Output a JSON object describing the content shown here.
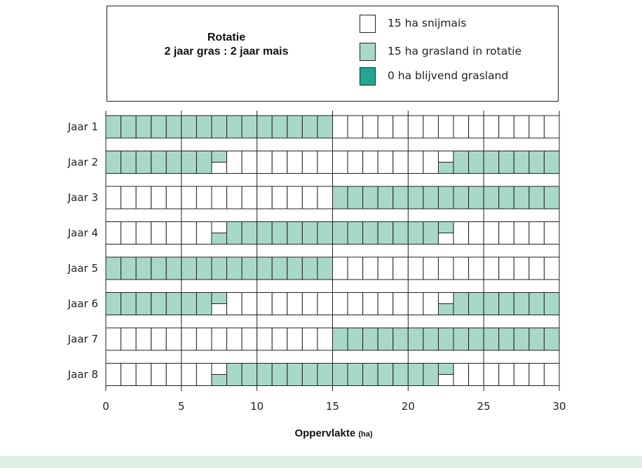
{
  "legend": {
    "title_line1": "Rotatie",
    "title_line2": "2 jaar gras : 2 jaar mais",
    "items": [
      {
        "label": "15 ha snijmais",
        "color": "#ffffff"
      },
      {
        "label": "15 ha grasland in rotatie",
        "color": "#a8d8c8"
      },
      {
        "label": "0 ha blijvend grasland",
        "color": "#23a68f"
      }
    ]
  },
  "colors": {
    "mais": "#ffffff",
    "gras": "#a8d8c8",
    "blijvend": "#23a68f",
    "background": "#ddeee5"
  },
  "chart_data": {
    "type": "bar",
    "orientation": "horizontal",
    "title": "Rotatie 2 jaar gras : 2 jaar mais",
    "xlabel": "Oppervlakte",
    "xlabel_unit": "(ha)",
    "xlim": [
      0,
      30
    ],
    "xticks": [
      0,
      5,
      10,
      15,
      20,
      25,
      30
    ],
    "grid": true,
    "rows": [
      {
        "label": "Jaar 1",
        "gras": [
          [
            0,
            15
          ]
        ],
        "split_gras_bottom": [],
        "split_gras_top": []
      },
      {
        "label": "Jaar 2",
        "gras": [
          [
            0,
            7
          ],
          [
            23,
            30
          ]
        ],
        "split_gras_bottom": [
          22
        ],
        "split_gras_top": [
          7
        ]
      },
      {
        "label": "Jaar 3",
        "gras": [
          [
            15,
            30
          ]
        ],
        "split_gras_bottom": [],
        "split_gras_top": []
      },
      {
        "label": "Jaar 4",
        "gras": [
          [
            8,
            22
          ]
        ],
        "split_gras_bottom": [
          7
        ],
        "split_gras_top": [
          22
        ]
      },
      {
        "label": "Jaar 5",
        "gras": [
          [
            0,
            15
          ]
        ],
        "split_gras_bottom": [],
        "split_gras_top": []
      },
      {
        "label": "Jaar 6",
        "gras": [
          [
            0,
            7
          ],
          [
            23,
            30
          ]
        ],
        "split_gras_bottom": [
          22
        ],
        "split_gras_top": [
          7
        ]
      },
      {
        "label": "Jaar 7",
        "gras": [
          [
            15,
            30
          ]
        ],
        "split_gras_bottom": [],
        "split_gras_top": []
      },
      {
        "label": "Jaar 8",
        "gras": [
          [
            8,
            22
          ]
        ],
        "split_gras_bottom": [
          7
        ],
        "split_gras_top": [
          22
        ]
      }
    ]
  }
}
